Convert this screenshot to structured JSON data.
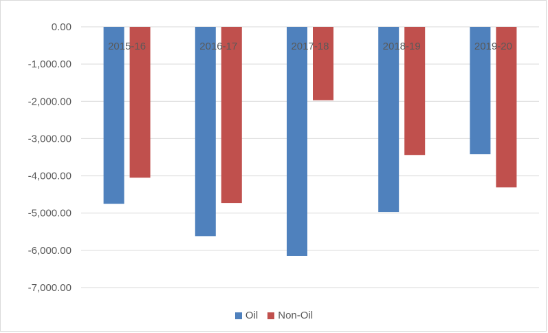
{
  "chart_data": {
    "type": "bar",
    "title": "",
    "xlabel": "",
    "ylabel": "",
    "categories": [
      "2015-16",
      "2016-17",
      "2017-18",
      "2018-19",
      "2019-20"
    ],
    "series": [
      {
        "name": "Oil",
        "color": "#4f81bd",
        "values": [
          -4750,
          -5620,
          -6150,
          -4970,
          -3420
        ]
      },
      {
        "name": "Non-Oil",
        "color": "#c0504d",
        "values": [
          -4050,
          -4730,
          -1970,
          -3440,
          -4310
        ]
      }
    ],
    "ylim": [
      -7000,
      0
    ],
    "yticks": [
      "0.00",
      "-1,000.00",
      "-2,000.00",
      "-3,000.00",
      "-4,000.00",
      "-5,000.00",
      "-6,000.00",
      "-7,000.00"
    ],
    "grid": true,
    "legend": "bottom"
  }
}
